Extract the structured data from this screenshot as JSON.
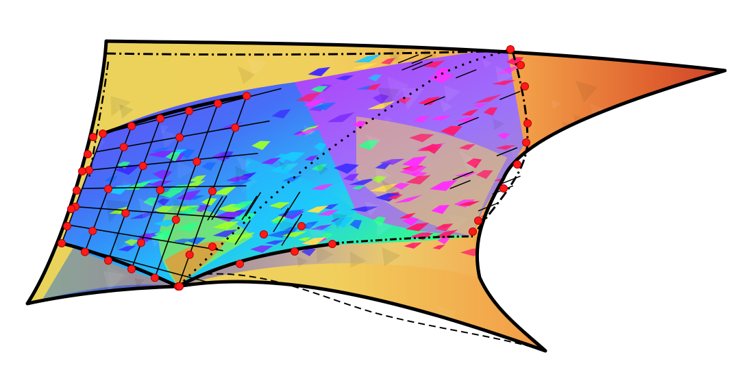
{
  "figure": {
    "palette": {
      "background": "#ffffff",
      "outline": "#000000",
      "marker": "#ff1a1a",
      "gradient": [
        "#e8d45a",
        "#f4b85a",
        "#f08a3e",
        "#d9482e",
        "#c83a2a"
      ],
      "hues": [
        "#7b2cff",
        "#3b2cff",
        "#1e6bff",
        "#19c9ff",
        "#2cff8a",
        "#9cff2c",
        "#ffe14a",
        "#ff2cff",
        "#ff1a6b"
      ]
    }
  }
}
